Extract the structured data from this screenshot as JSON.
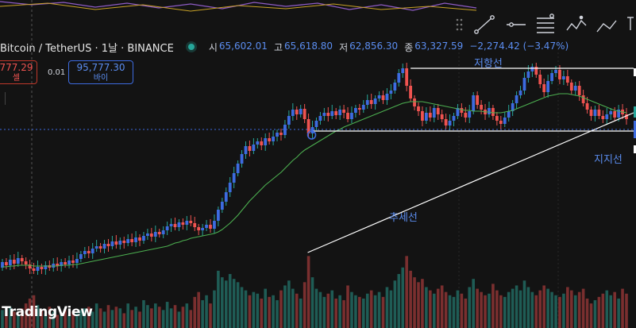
{
  "symbol": {
    "title": "Bitcoin / TetherUS · 1날 · BINANCE",
    "ohlc": [
      {
        "key": "시",
        "value": "65,602.01"
      },
      {
        "key": "고",
        "value": "65,618.80"
      },
      {
        "key": "저",
        "value": "62,856.30"
      },
      {
        "key": "종",
        "value": "63,327.59"
      }
    ],
    "change": "−2,274.42 (−3.47%)"
  },
  "trade": {
    "sell_price": "777.29",
    "sell_label": "셀",
    "spread": "0.01",
    "buy_price": "95,777.30",
    "buy_label": "바이"
  },
  "annotations": {
    "resistance": "저항선",
    "support": "지지선",
    "trend": "추세선"
  },
  "branding": {
    "logo_text": "TradingView"
  },
  "colors": {
    "up": "#26a69a",
    "down": "#ef5350",
    "ma": "#4caf50",
    "accent": "#5b8df0",
    "line": "#ffffff"
  },
  "toolbar_icons": [
    "drag-handle-icon",
    "trend-line-icon",
    "horizontal-line-icon",
    "fib-retracement-icon",
    "pattern-icon",
    "text-icon"
  ],
  "chart_data": {
    "type": "candlestick",
    "title": "",
    "xlabel": "",
    "ylabel": "",
    "candles": [
      {
        "o": 45,
        "c": 52
      },
      {
        "o": 52,
        "c": 48
      },
      {
        "o": 48,
        "c": 55
      },
      {
        "o": 55,
        "c": 50
      },
      {
        "o": 50,
        "c": 57
      },
      {
        "o": 57,
        "c": 53
      },
      {
        "o": 53,
        "c": 49
      },
      {
        "o": 49,
        "c": 44
      },
      {
        "o": 44,
        "c": 41
      },
      {
        "o": 41,
        "c": 46
      },
      {
        "o": 46,
        "c": 43
      },
      {
        "o": 43,
        "c": 48
      },
      {
        "o": 48,
        "c": 45
      },
      {
        "o": 45,
        "c": 50
      },
      {
        "o": 50,
        "c": 47
      },
      {
        "o": 47,
        "c": 52
      },
      {
        "o": 52,
        "c": 49
      },
      {
        "o": 49,
        "c": 54
      },
      {
        "o": 54,
        "c": 51
      },
      {
        "o": 51,
        "c": 56
      },
      {
        "o": 56,
        "c": 62
      },
      {
        "o": 62,
        "c": 66
      },
      {
        "o": 66,
        "c": 63
      },
      {
        "o": 63,
        "c": 69
      },
      {
        "o": 69,
        "c": 72
      },
      {
        "o": 72,
        "c": 69
      },
      {
        "o": 69,
        "c": 75
      },
      {
        "o": 75,
        "c": 72
      },
      {
        "o": 72,
        "c": 78
      },
      {
        "o": 78,
        "c": 74
      },
      {
        "o": 74,
        "c": 79
      },
      {
        "o": 79,
        "c": 76
      },
      {
        "o": 76,
        "c": 81
      },
      {
        "o": 81,
        "c": 77
      },
      {
        "o": 77,
        "c": 83
      },
      {
        "o": 83,
        "c": 79
      },
      {
        "o": 79,
        "c": 85
      },
      {
        "o": 85,
        "c": 88
      },
      {
        "o": 88,
        "c": 84
      },
      {
        "o": 84,
        "c": 90
      },
      {
        "o": 90,
        "c": 87
      },
      {
        "o": 87,
        "c": 92
      },
      {
        "o": 92,
        "c": 97
      },
      {
        "o": 97,
        "c": 100
      },
      {
        "o": 100,
        "c": 96
      },
      {
        "o": 96,
        "c": 102
      },
      {
        "o": 102,
        "c": 99
      },
      {
        "o": 99,
        "c": 104
      },
      {
        "o": 104,
        "c": 101
      },
      {
        "o": 101,
        "c": 96
      },
      {
        "o": 96,
        "c": 92
      },
      {
        "o": 92,
        "c": 95
      },
      {
        "o": 95,
        "c": 99
      },
      {
        "o": 99,
        "c": 94
      },
      {
        "o": 94,
        "c": 104
      },
      {
        "o": 104,
        "c": 118
      },
      {
        "o": 118,
        "c": 128
      },
      {
        "o": 128,
        "c": 140
      },
      {
        "o": 140,
        "c": 152
      },
      {
        "o": 152,
        "c": 164
      },
      {
        "o": 164,
        "c": 176
      },
      {
        "o": 176,
        "c": 188
      },
      {
        "o": 188,
        "c": 198
      },
      {
        "o": 198,
        "c": 192
      },
      {
        "o": 192,
        "c": 200
      },
      {
        "o": 200,
        "c": 204
      },
      {
        "o": 204,
        "c": 199
      },
      {
        "o": 199,
        "c": 208
      },
      {
        "o": 208,
        "c": 204
      },
      {
        "o": 204,
        "c": 210
      },
      {
        "o": 210,
        "c": 215
      },
      {
        "o": 215,
        "c": 212
      },
      {
        "o": 212,
        "c": 225
      },
      {
        "o": 225,
        "c": 236
      },
      {
        "o": 236,
        "c": 244
      },
      {
        "o": 244,
        "c": 238
      },
      {
        "o": 238,
        "c": 245
      },
      {
        "o": 245,
        "c": 232
      },
      {
        "o": 232,
        "c": 214
      },
      {
        "o": 214,
        "c": 222
      },
      {
        "o": 222,
        "c": 230
      },
      {
        "o": 230,
        "c": 236
      },
      {
        "o": 236,
        "c": 240
      },
      {
        "o": 240,
        "c": 236
      },
      {
        "o": 236,
        "c": 242
      },
      {
        "o": 242,
        "c": 237
      },
      {
        "o": 237,
        "c": 244
      },
      {
        "o": 244,
        "c": 240
      },
      {
        "o": 240,
        "c": 232
      },
      {
        "o": 232,
        "c": 240
      },
      {
        "o": 240,
        "c": 246
      },
      {
        "o": 246,
        "c": 244
      },
      {
        "o": 244,
        "c": 250
      },
      {
        "o": 250,
        "c": 256
      },
      {
        "o": 256,
        "c": 251
      },
      {
        "o": 251,
        "c": 258
      },
      {
        "o": 258,
        "c": 262
      },
      {
        "o": 262,
        "c": 256
      },
      {
        "o": 256,
        "c": 264
      },
      {
        "o": 264,
        "c": 268
      },
      {
        "o": 268,
        "c": 278
      },
      {
        "o": 278,
        "c": 290
      },
      {
        "o": 290,
        "c": 296
      },
      {
        "o": 296,
        "c": 274
      },
      {
        "o": 274,
        "c": 258
      },
      {
        "o": 258,
        "c": 248
      },
      {
        "o": 248,
        "c": 242
      },
      {
        "o": 242,
        "c": 230
      },
      {
        "o": 230,
        "c": 240
      },
      {
        "o": 240,
        "c": 234
      },
      {
        "o": 234,
        "c": 246
      },
      {
        "o": 246,
        "c": 238
      },
      {
        "o": 238,
        "c": 232
      },
      {
        "o": 232,
        "c": 224
      },
      {
        "o": 224,
        "c": 230
      },
      {
        "o": 230,
        "c": 236
      },
      {
        "o": 236,
        "c": 246
      },
      {
        "o": 246,
        "c": 240
      },
      {
        "o": 240,
        "c": 234
      },
      {
        "o": 234,
        "c": 242
      },
      {
        "o": 242,
        "c": 262
      },
      {
        "o": 262,
        "c": 250
      },
      {
        "o": 250,
        "c": 244
      },
      {
        "o": 244,
        "c": 238
      },
      {
        "o": 238,
        "c": 246
      },
      {
        "o": 246,
        "c": 236
      },
      {
        "o": 236,
        "c": 230
      },
      {
        "o": 230,
        "c": 226
      },
      {
        "o": 226,
        "c": 234
      },
      {
        "o": 234,
        "c": 242
      },
      {
        "o": 242,
        "c": 252
      },
      {
        "o": 252,
        "c": 262
      },
      {
        "o": 262,
        "c": 268
      },
      {
        "o": 268,
        "c": 284
      },
      {
        "o": 284,
        "c": 292
      },
      {
        "o": 292,
        "c": 298
      },
      {
        "o": 298,
        "c": 288
      },
      {
        "o": 288,
        "c": 276
      },
      {
        "o": 276,
        "c": 266
      },
      {
        "o": 266,
        "c": 280
      },
      {
        "o": 280,
        "c": 290
      },
      {
        "o": 290,
        "c": 294
      },
      {
        "o": 294,
        "c": 282
      },
      {
        "o": 282,
        "c": 286
      },
      {
        "o": 286,
        "c": 278
      },
      {
        "o": 278,
        "c": 268
      },
      {
        "o": 268,
        "c": 274
      },
      {
        "o": 274,
        "c": 262
      },
      {
        "o": 262,
        "c": 252
      },
      {
        "o": 252,
        "c": 244
      },
      {
        "o": 244,
        "c": 236
      },
      {
        "o": 236,
        "c": 244
      },
      {
        "o": 244,
        "c": 236
      },
      {
        "o": 236,
        "c": 232
      },
      {
        "o": 232,
        "c": 238
      },
      {
        "o": 238,
        "c": 242
      },
      {
        "o": 242,
        "c": 234
      },
      {
        "o": 234,
        "c": 244
      },
      {
        "o": 244,
        "c": 238
      },
      {
        "o": 238,
        "c": 232
      }
    ],
    "volumes": [
      22,
      18,
      26,
      20,
      16,
      24,
      30,
      36,
      40,
      28,
      22,
      18,
      26,
      20,
      16,
      18,
      22,
      16,
      20,
      18,
      22,
      24,
      26,
      20,
      30,
      24,
      20,
      28,
      22,
      26,
      24,
      18,
      30,
      22,
      26,
      20,
      34,
      28,
      24,
      30,
      26,
      22,
      32,
      24,
      28,
      20,
      26,
      30,
      22,
      38,
      44,
      34,
      40,
      30,
      46,
      70,
      62,
      58,
      66,
      60,
      56,
      50,
      46,
      40,
      44,
      42,
      36,
      48,
      38,
      40,
      34,
      46,
      52,
      58,
      48,
      42,
      36,
      56,
      88,
      62,
      48,
      44,
      38,
      42,
      46,
      36,
      40,
      34,
      52,
      44,
      40,
      38,
      36,
      42,
      46,
      40,
      44,
      38,
      50,
      46,
      58,
      66,
      74,
      88,
      70,
      62,
      56,
      60,
      50,
      46,
      42,
      48,
      52,
      44,
      40,
      38,
      46,
      42,
      36,
      50,
      60,
      48,
      44,
      40,
      42,
      54,
      46,
      40,
      38,
      44,
      48,
      52,
      46,
      58,
      50,
      44,
      40,
      46,
      52,
      48,
      44,
      40,
      38,
      42,
      50,
      46,
      40,
      44,
      48,
      36,
      30,
      34,
      38,
      42,
      46,
      40,
      44,
      36,
      48,
      42
    ],
    "ma": [
      46,
      46,
      47,
      47,
      48,
      48,
      48,
      48,
      47,
      47,
      47,
      47,
      47,
      47,
      47,
      48,
      48,
      48,
      49,
      49,
      50,
      51,
      52,
      53,
      54,
      55,
      56,
      57,
      58,
      59,
      60,
      61,
      62,
      63,
      64,
      65,
      66,
      67,
      68,
      69,
      70,
      71,
      72,
      74,
      76,
      77,
      79,
      80,
      82,
      83,
      84,
      85,
      86,
      87,
      88,
      90,
      93,
      97,
      101,
      106,
      111,
      117,
      123,
      129,
      134,
      139,
      144,
      149,
      153,
      157,
      161,
      165,
      170,
      175,
      180,
      184,
      189,
      193,
      196,
      199,
      202,
      205,
      208,
      211,
      214,
      217,
      219,
      222,
      224,
      226,
      228,
      230,
      232,
      234,
      236,
      238,
      240,
      242,
      244,
      246,
      248,
      250,
      252,
      253,
      254,
      254,
      254,
      254,
      253,
      252,
      251,
      250,
      249,
      248,
      247,
      246,
      245,
      244,
      243,
      243,
      242,
      242,
      242,
      241,
      241,
      240,
      240,
      240,
      241,
      242,
      243,
      245,
      247,
      249,
      251,
      253,
      255,
      257,
      259,
      261,
      262,
      263,
      264,
      264,
      264,
      263,
      262,
      261,
      259,
      257,
      255,
      253,
      251,
      249,
      247,
      245,
      243,
      242,
      241,
      240
    ],
    "levels": {
      "resistance": 296,
      "support": 214
    },
    "trendline": {
      "from_index": 79,
      "from_value": 74,
      "to_index": 159,
      "to_value": 234
    }
  }
}
